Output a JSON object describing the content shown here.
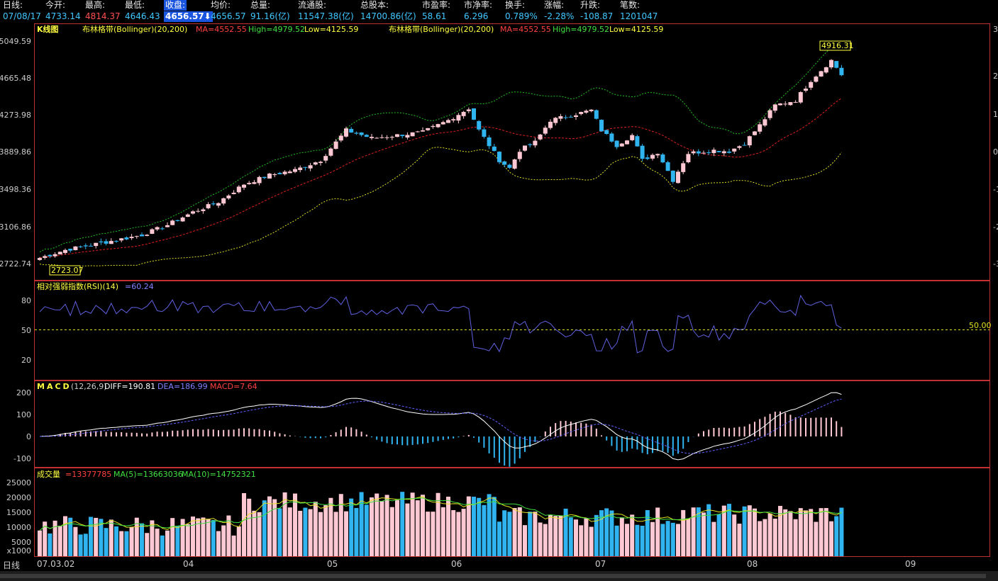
{
  "info_bar": {
    "period": {
      "label": "日线:",
      "value": "07/08/17"
    },
    "open": {
      "label": "今开:",
      "value": "4733.14"
    },
    "high": {
      "label": "最高:",
      "value": "4814.37"
    },
    "low": {
      "label": "最低:",
      "value": "4646.43"
    },
    "close": {
      "label": "收盘:",
      "value": "4656.57⬇"
    },
    "avg": {
      "label": "均价:",
      "value": "4656.57"
    },
    "volume": {
      "label": "总量:",
      "value": "91.16(亿)"
    },
    "float_shares": {
      "label": "流通股:",
      "value": "11547.38(亿)"
    },
    "total_shares": {
      "label": "总股本:",
      "value": "14700.86(亿)"
    },
    "pe": {
      "label": "市盈率:",
      "value": "58.61"
    },
    "pb": {
      "label": "市净率:",
      "value": "6.296"
    },
    "turnover": {
      "label": "换手:",
      "value": "0.789%"
    },
    "change_pct": {
      "label": "涨幅:",
      "value": "-2.28%"
    },
    "change": {
      "label": "升跌:",
      "value": "-108.87"
    },
    "trades": {
      "label": "笔数:",
      "value": "1201047"
    }
  },
  "kline_panel": {
    "title": "K线图",
    "legend_name": "布林格带(Bollinger)(20,200)",
    "legend_ma": "MA=4552.55",
    "legend_high": "High=4979.52",
    "legend_low": "Low=4125.59",
    "y_ticks": [
      "5049.59",
      "4665.48",
      "4273.98",
      "3889.86",
      "3498.36",
      "3106.86",
      "2722.74"
    ],
    "right_ticks": [
      "3",
      "2",
      "1",
      "0",
      "-1",
      "-2",
      "-3"
    ],
    "max_label": "4916.31",
    "min_label": "2723.07"
  },
  "rsi_panel": {
    "title": "相对强弱指数(RSI)(14)",
    "value": "=60.24",
    "y_ticks": [
      "80",
      "50",
      "20"
    ],
    "ref_label": "50.00"
  },
  "macd_panel": {
    "title": "MACD",
    "params": "(12,26,9)",
    "diff": "DIFF=190.81",
    "dea": "DEA=186.99",
    "macd": "MACD=7.64",
    "y_ticks": [
      "200",
      "100",
      "0",
      "-100"
    ]
  },
  "volume_panel": {
    "title": "成交量",
    "value": "=13377785",
    "ma5": "MA(5)=13663036",
    "ma10": "MA(10)=14752321",
    "y_ticks": [
      "25000",
      "20000",
      "15000",
      "10000",
      "5000"
    ],
    "unit": "x1000"
  },
  "x_axis": {
    "period_label": "日线",
    "labels": [
      "07.03.02",
      "04",
      "05",
      "06",
      "07",
      "08",
      "09"
    ]
  },
  "colors": {
    "up": "#ffc8d2",
    "down": "#30b4f0",
    "ma": "#e02020",
    "upper": "#20c020",
    "lower": "#e0e020",
    "rsi": "#6060e0",
    "diff": "#ffffff",
    "dea": "#6060ff",
    "grid": "#c03030"
  },
  "chart_data": {
    "type": "candlestick",
    "series_name": "日线",
    "days": 158,
    "anchors": [
      {
        "day": 0,
        "close": 2820
      },
      {
        "day": 5,
        "close": 2900
      },
      {
        "day": 15,
        "close": 3000
      },
      {
        "day": 20,
        "close": 3050
      },
      {
        "day": 25,
        "close": 3150
      },
      {
        "day": 30,
        "close": 3280
      },
      {
        "day": 35,
        "close": 3380
      },
      {
        "day": 40,
        "close": 3560
      },
      {
        "day": 45,
        "close": 3650
      },
      {
        "day": 50,
        "close": 3700
      },
      {
        "day": 55,
        "close": 3800
      },
      {
        "day": 60,
        "close": 4100
      },
      {
        "day": 65,
        "close": 4020
      },
      {
        "day": 70,
        "close": 4050
      },
      {
        "day": 75,
        "close": 4080
      },
      {
        "day": 80,
        "close": 4200
      },
      {
        "day": 84,
        "close": 4320
      },
      {
        "day": 86,
        "close": 4100
      },
      {
        "day": 88,
        "close": 3950
      },
      {
        "day": 90,
        "close": 3800
      },
      {
        "day": 92,
        "close": 3720
      },
      {
        "day": 94,
        "close": 3900
      },
      {
        "day": 97,
        "close": 3980
      },
      {
        "day": 100,
        "close": 4200
      },
      {
        "day": 104,
        "close": 4250
      },
      {
        "day": 108,
        "close": 4300
      },
      {
        "day": 110,
        "close": 4100
      },
      {
        "day": 113,
        "close": 3950
      },
      {
        "day": 116,
        "close": 4050
      },
      {
        "day": 118,
        "close": 3800
      },
      {
        "day": 121,
        "close": 3880
      },
      {
        "day": 124,
        "close": 3600
      },
      {
        "day": 127,
        "close": 3870
      },
      {
        "day": 132,
        "close": 3900
      },
      {
        "day": 135,
        "close": 3890
      },
      {
        "day": 138,
        "close": 3970
      },
      {
        "day": 141,
        "close": 4150
      },
      {
        "day": 144,
        "close": 4350
      },
      {
        "day": 148,
        "close": 4400
      },
      {
        "day": 151,
        "close": 4600
      },
      {
        "day": 155,
        "close": 4800
      },
      {
        "day": 157,
        "close": 4656.57
      }
    ],
    "ylim": [
      2650,
      5100
    ]
  }
}
